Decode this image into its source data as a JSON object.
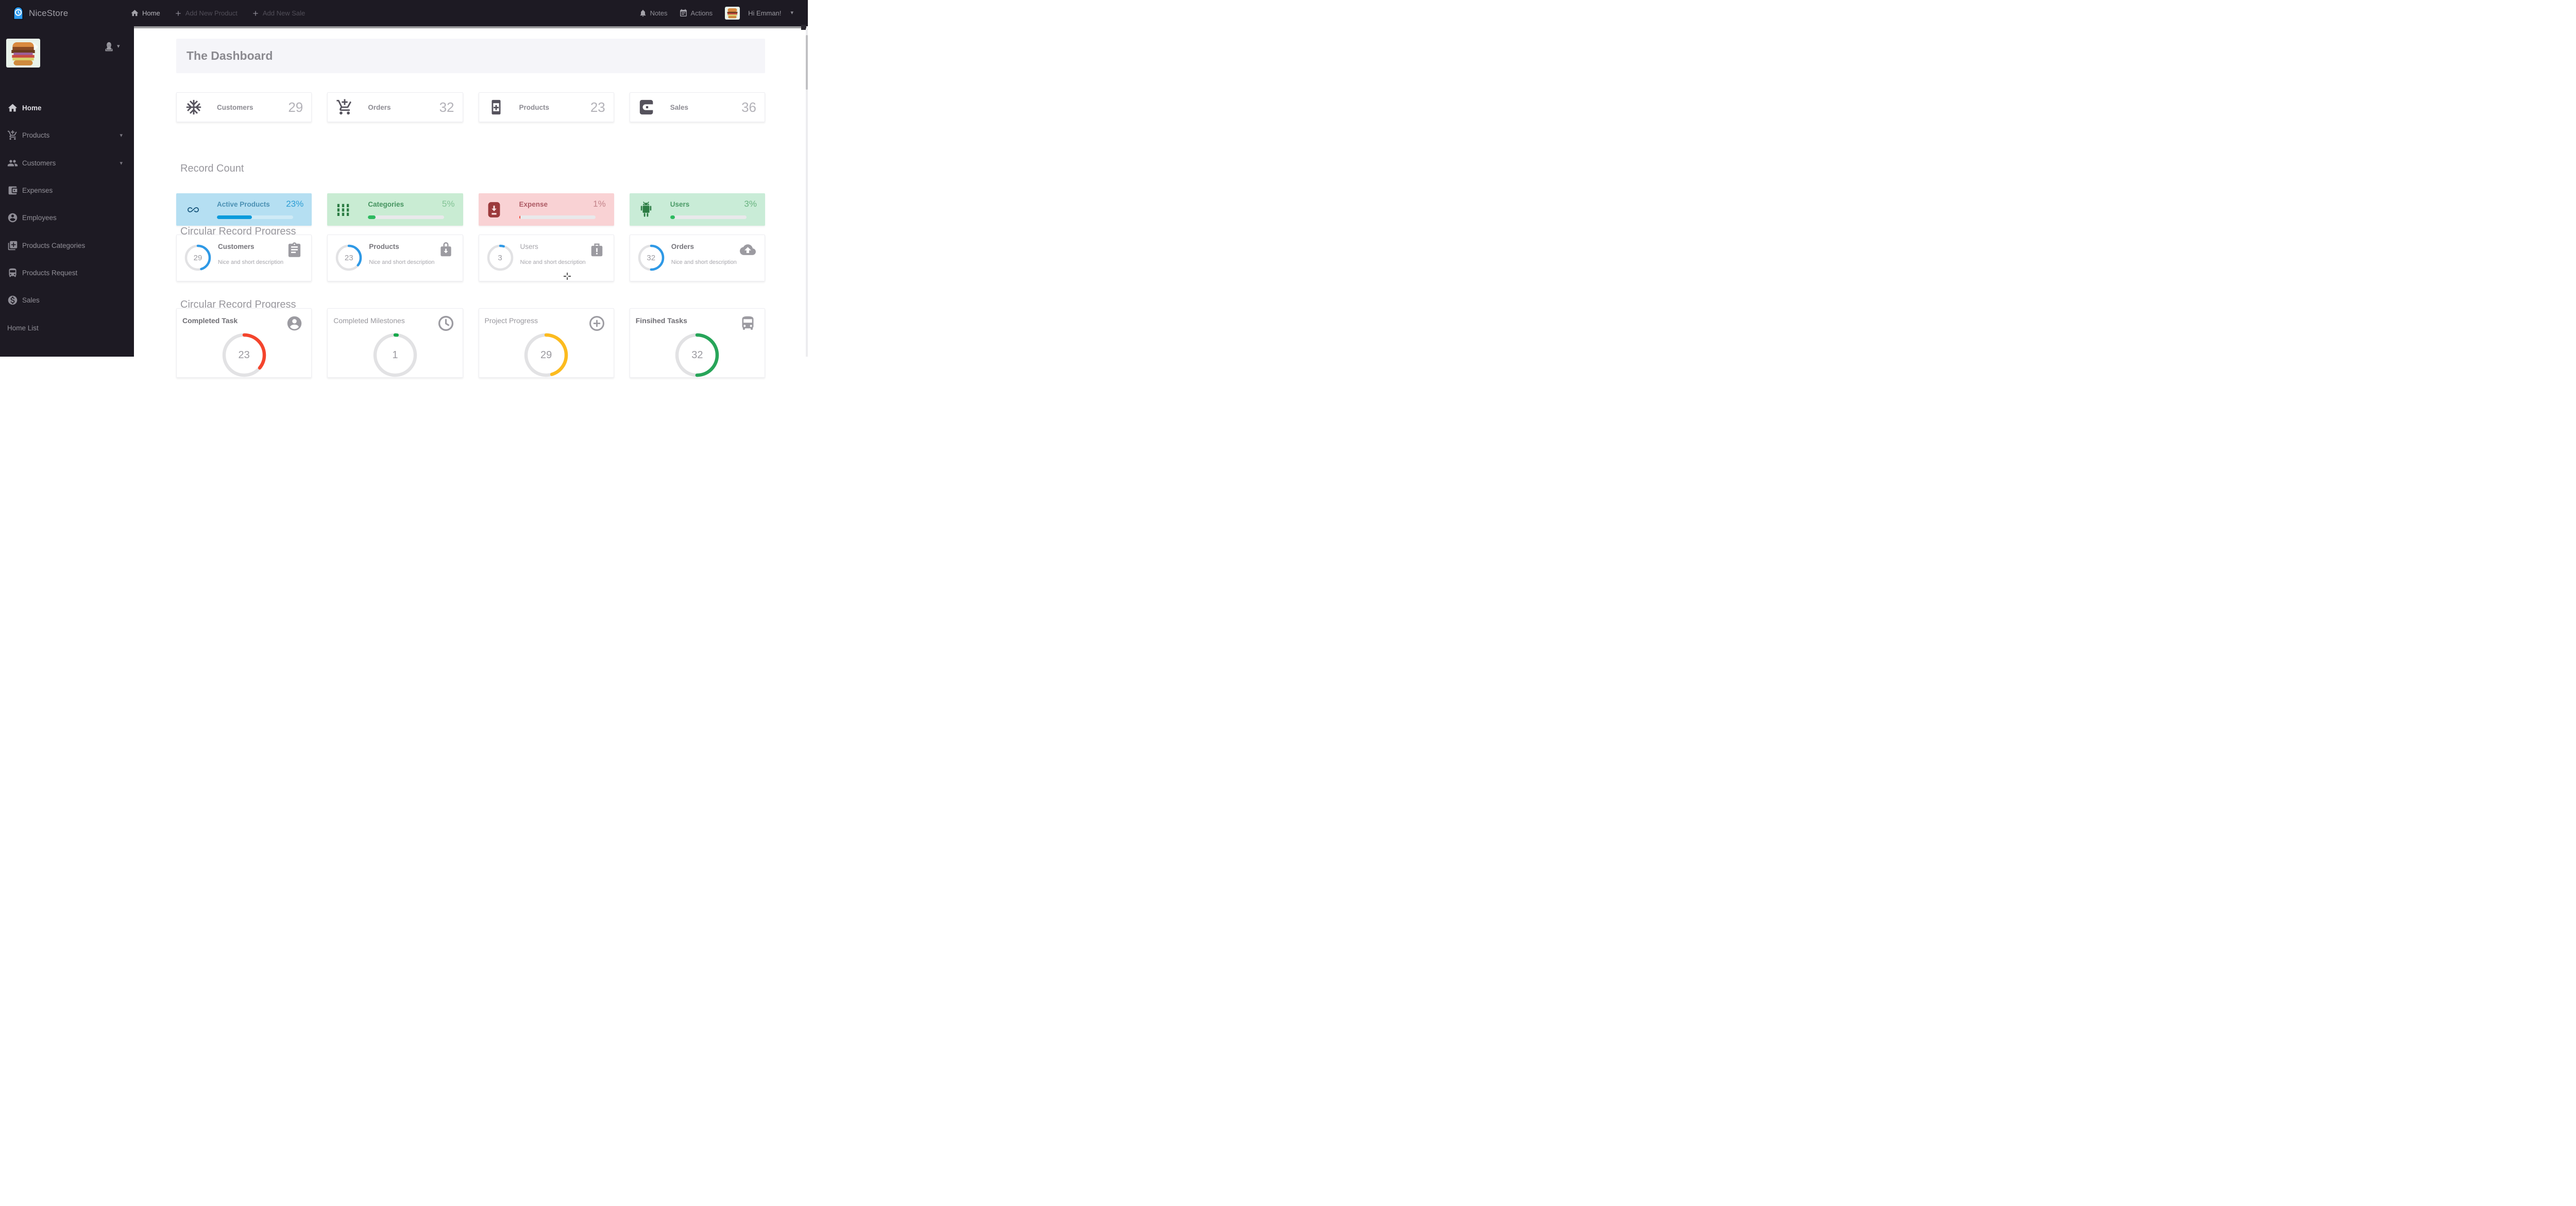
{
  "brand": {
    "name": "NiceStore",
    "logo_icon": "clock-app-logo",
    "accent_color": "#2e9bf0"
  },
  "topnav": {
    "home_label": "Home",
    "add_new_product_label": "Add New Product",
    "add_new_sale_label": "Add New Sale",
    "notes_label": "Notes",
    "actions_label": "Actions",
    "greeting": "Hi Emman!",
    "avatar_image": "burger-photo"
  },
  "sidebar": {
    "avatar_image": "burger-photo",
    "items": [
      {
        "label": "Home",
        "icon": "home-icon",
        "active": true,
        "expandable": false
      },
      {
        "label": "Products",
        "icon": "add-cart-icon",
        "active": false,
        "expandable": true
      },
      {
        "label": "Customers",
        "icon": "people-icon",
        "active": false,
        "expandable": true
      },
      {
        "label": "Expenses",
        "icon": "wallet-icon",
        "active": false,
        "expandable": false
      },
      {
        "label": "Employees",
        "icon": "person-circle-icon",
        "active": false,
        "expandable": false
      },
      {
        "label": "Products Categories",
        "icon": "library-add-icon",
        "active": false,
        "expandable": false
      },
      {
        "label": "Products Request",
        "icon": "bus-icon",
        "active": false,
        "expandable": false
      },
      {
        "label": "Sales",
        "icon": "dollar-circle-icon",
        "active": false,
        "expandable": false
      },
      {
        "label": "Home List",
        "icon": null,
        "active": false,
        "expandable": false
      }
    ]
  },
  "page": {
    "title": "The Dashboard",
    "record_count_heading": "Record Count",
    "circular_heading_1": "Circular Record Progress",
    "circular_heading_2": "Circular Record Progress"
  },
  "stats_cards": [
    {
      "label": "Customers",
      "value": "29",
      "icon": "snowflake-icon"
    },
    {
      "label": "Orders",
      "value": "32",
      "icon": "add-cart-icon"
    },
    {
      "label": "Products",
      "value": "23",
      "icon": "add-box-icon"
    },
    {
      "label": "Sales",
      "value": "36",
      "icon": "wallet-icon"
    }
  ],
  "record_count_cards": [
    {
      "label": "Active Products",
      "value_label": "23%",
      "percent": 23,
      "icon": "infinity-icon",
      "bg_color": "#b5dff2",
      "icon_color": "#19577d",
      "label_color": "#4b90b3",
      "value_color": "#2d9dd4",
      "bar_color": "#0c9bdc",
      "track_color": "rgba(255,255,255,0.35)"
    },
    {
      "label": "Categories",
      "value_label": "5%",
      "percent": 5,
      "icon": "grid-icon",
      "bg_color": "#c9ecd3",
      "icon_color": "#2c7c44",
      "label_color": "#45935f",
      "value_color": "#83c496",
      "bar_color": "#2eba60",
      "track_color": "#e9e9eb"
    },
    {
      "label": "Expense",
      "value_label": "1%",
      "percent": 1,
      "icon": "archive-download-icon",
      "bg_color": "#f9d2d4",
      "icon_color": "#9c3a3c",
      "label_color": "#ad5a64",
      "value_color": "#c4848b",
      "bar_color": "#f2402f",
      "track_color": "#e9e9eb"
    },
    {
      "label": "Users",
      "value_label": "3%",
      "percent": 3,
      "icon": "android-icon",
      "bg_color": "#c9ecd7",
      "icon_color": "#2c7c44",
      "label_color": "#4a9a66",
      "value_color": "#68b37f",
      "bar_color": "#2eba60",
      "track_color": "#e9e9eb"
    }
  ],
  "circular_cards_small": [
    {
      "label": "Customers",
      "value": 29,
      "description": "Nice and short description",
      "icon": "clipboard-icon",
      "arc_color": "#2e99e6",
      "muted": false
    },
    {
      "label": "Products",
      "value": 23,
      "description": "Nice and short description",
      "icon": "bag-download-icon",
      "arc_color": "#2e99e6",
      "muted": false
    },
    {
      "label": "Users",
      "value": 3,
      "description": "Nice and short description",
      "icon": "briefcase-alert-icon",
      "arc_color": "#2e99e6",
      "muted": true
    },
    {
      "label": "Orders",
      "value": 32,
      "description": "Nice and short description",
      "icon": "cloud-upload-icon",
      "arc_color": "#2e99e6",
      "muted": false
    }
  ],
  "circular_cards_large": [
    {
      "label": "Completed Task",
      "value": 23,
      "icon": "person-circle-icon",
      "arc_color": "#f4442c",
      "bold": true
    },
    {
      "label": "Completed Milestones",
      "value": 1,
      "icon": "clock-icon",
      "arc_color": "#17a84b",
      "bold": false
    },
    {
      "label": "Project Progress",
      "value": 29,
      "icon": "add-circle-icon",
      "arc_color": "#fcbb1e",
      "bold": false
    },
    {
      "label": "Finsihed Tasks",
      "value": 32,
      "icon": "bus-icon",
      "arc_color": "#27a559",
      "bold": true
    }
  ],
  "donut_scale_max": 64
}
